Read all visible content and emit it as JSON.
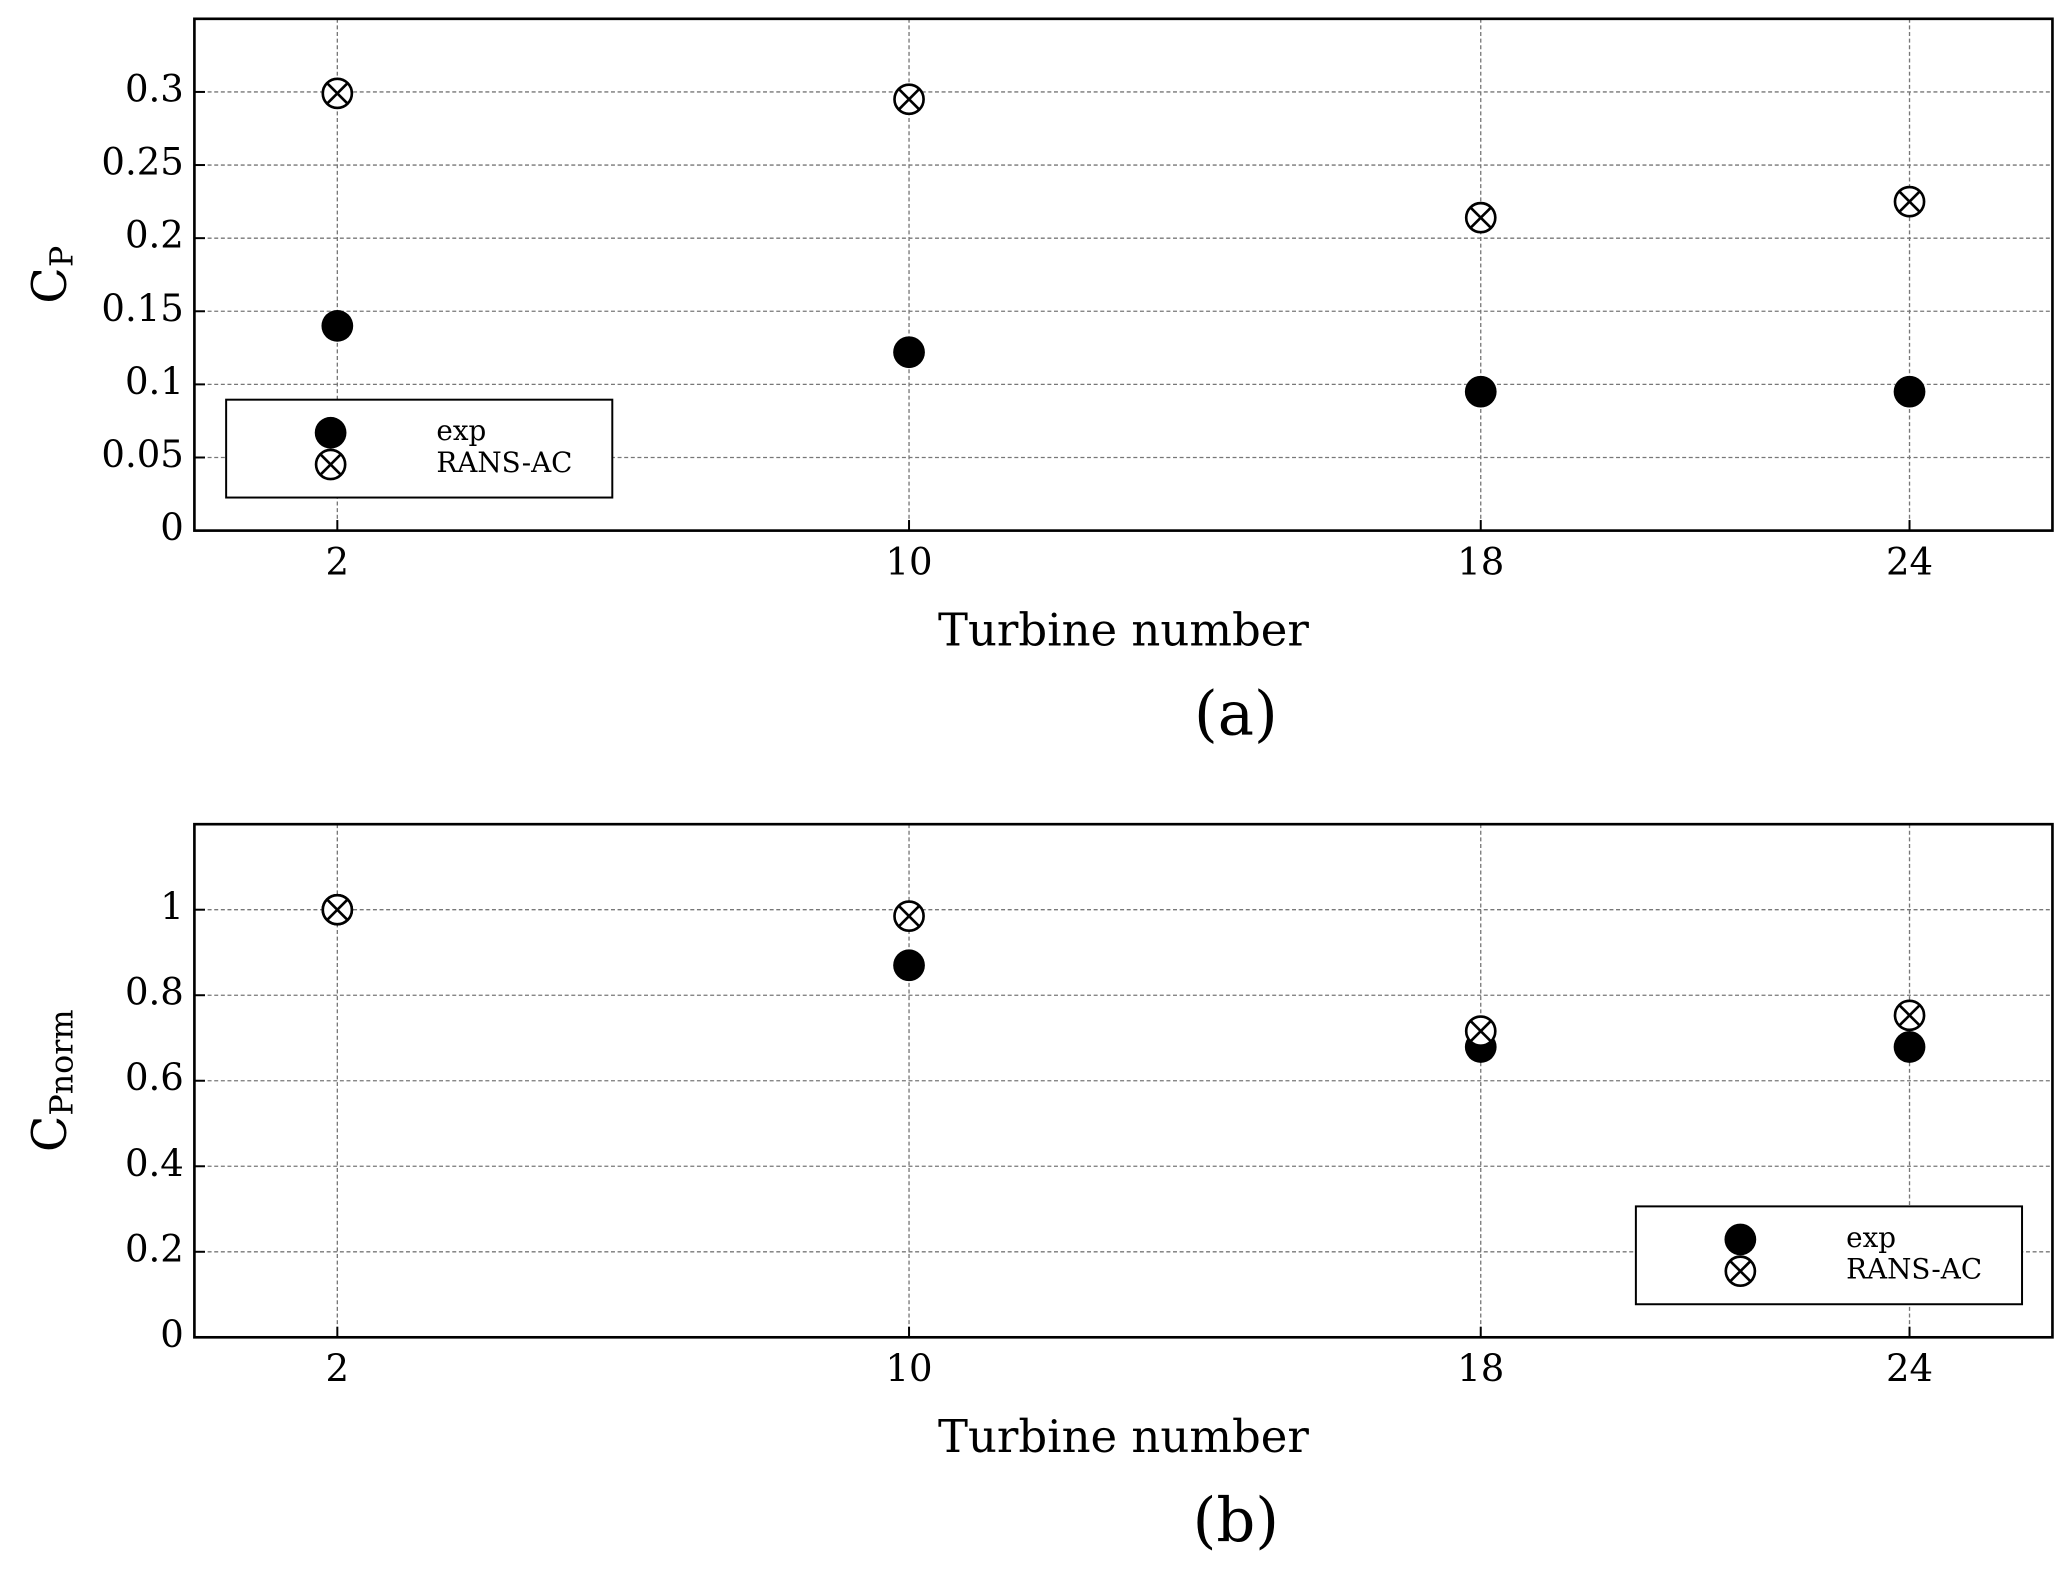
{
  "chart_data": [
    {
      "type": "scatter",
      "xlabel": "Turbine number",
      "ylabel": "C",
      "ylabel_sub": "P",
      "caption": "(a)",
      "x": [
        2,
        10,
        18,
        24
      ],
      "xlim": [
        0,
        26
      ],
      "xticks": [
        2,
        10,
        18,
        24
      ],
      "ylim": [
        0,
        0.35
      ],
      "yticks": [
        0,
        0.05,
        0.1,
        0.15,
        0.2,
        0.25,
        0.3
      ],
      "grid": true,
      "legend": "lower left",
      "series": [
        {
          "name": "exp",
          "color": "#000000",
          "marker": "filled",
          "values": [
            0.14,
            0.122,
            0.095,
            0.095
          ]
        },
        {
          "name": "RANS-AC",
          "color": "#000000",
          "marker": "crossed",
          "values": [
            0.299,
            0.295,
            0.214,
            0.225
          ]
        }
      ]
    },
    {
      "type": "scatter",
      "xlabel": "Turbine number",
      "ylabel": "C",
      "ylabel_sub": "Pnorm",
      "caption": "(b)",
      "x": [
        2,
        10,
        18,
        24
      ],
      "xlim": [
        0,
        26
      ],
      "xticks": [
        2,
        10,
        18,
        24
      ],
      "ylim": [
        0,
        1.2
      ],
      "yticks": [
        0,
        0.2,
        0.4,
        0.6,
        0.8,
        1
      ],
      "grid": true,
      "legend": "lower right",
      "series": [
        {
          "name": "exp",
          "color": "#000000",
          "marker": "filled",
          "values": [
            1,
            0.87,
            0.679,
            0.679
          ]
        },
        {
          "name": "RANS-AC",
          "color": "#000000",
          "marker": "crossed",
          "values": [
            1,
            0.985,
            0.716,
            0.753
          ]
        }
      ]
    }
  ]
}
